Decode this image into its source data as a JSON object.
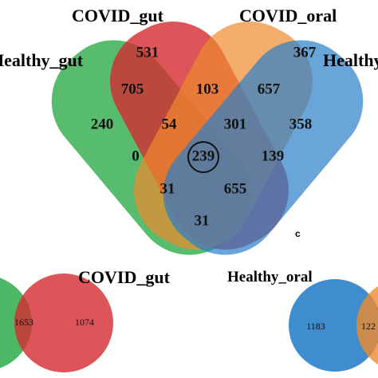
{
  "main_venn": {
    "sets": [
      {
        "label": "Healthy_gut",
        "color": "#2eab4a"
      },
      {
        "label": "COVID_gut",
        "color": "#d42a2f"
      },
      {
        "label": "COVID_oral",
        "color": "#ef8a2e"
      },
      {
        "label": "Healthy_oral",
        "color": "#2a7fc9"
      }
    ],
    "regions": [
      "531",
      "367",
      "705",
      "103",
      "657",
      "240",
      "54",
      "301",
      "358",
      "0",
      "239",
      "139",
      "31",
      "655",
      "31"
    ],
    "panel_label": "c"
  },
  "bottom_left": {
    "label": "COVID_gut",
    "regions": [
      "1653",
      "1074"
    ]
  },
  "bottom_right": {
    "label": "Healthy_oral",
    "regions": [
      "1183",
      "122"
    ]
  }
}
